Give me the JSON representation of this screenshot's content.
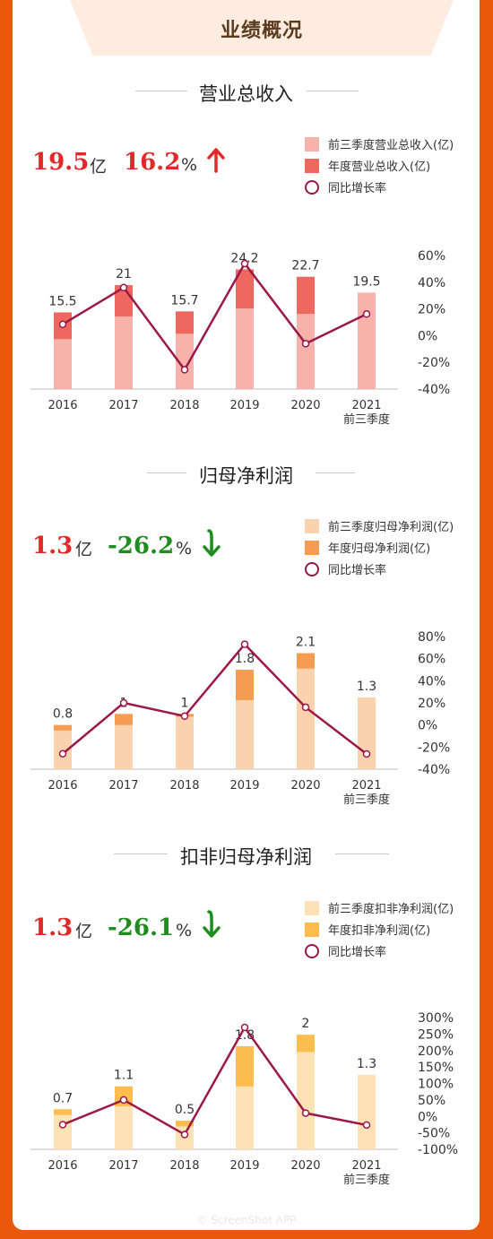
{
  "header": {
    "title": "业绩概况"
  },
  "sections": [
    {
      "title": "营业总收入",
      "kpi_value": "19.5",
      "kpi_unit": "亿",
      "kpi_growth": "16.2",
      "kpi_growth_unit": "%",
      "kpi_direction": "up",
      "colors": {
        "q3": "#f7b3ab",
        "annual": "#ee6860",
        "line": "#9b1847",
        "kpi_value": "#e02a2a",
        "kpi_growth": "#e02a2a"
      },
      "legend": [
        "前三季度营业总收入(亿)",
        "年度营业总收入(亿)",
        "同比增长率"
      ]
    },
    {
      "title": "归母净利润",
      "kpi_value": "1.3",
      "kpi_unit": "亿",
      "kpi_growth": "-26.2",
      "kpi_growth_unit": "%",
      "kpi_direction": "down",
      "colors": {
        "q3": "#fbd2ae",
        "annual": "#f49c52",
        "line": "#9b1847",
        "kpi_value": "#e02a2a",
        "kpi_growth": "#1e8c1e"
      },
      "legend": [
        "前三季度归母净利润(亿)",
        "年度归母净利润(亿)",
        "同比增长率"
      ]
    },
    {
      "title": "扣非归母净利润",
      "kpi_value": "1.3",
      "kpi_unit": "亿",
      "kpi_growth": "-26.1",
      "kpi_growth_unit": "%",
      "kpi_direction": "down",
      "colors": {
        "q3": "#fde2b5",
        "annual": "#fbbd4e",
        "line": "#9b1847",
        "kpi_value": "#e02a2a",
        "kpi_growth": "#1e8c1e"
      },
      "legend": [
        "前三季度扣非净利润(亿)",
        "年度扣非净利润(亿)",
        "同比增长率"
      ]
    }
  ],
  "chart_data": [
    {
      "type": "bar",
      "categories": [
        "2016",
        "2017",
        "2018",
        "2019",
        "2020",
        "2021\n前三季度"
      ],
      "series": [
        {
          "name": "前三季度营业总收入(亿)",
          "values": [
            10.1,
            14.7,
            11.2,
            16.3,
            15.2,
            19.5
          ]
        },
        {
          "name": "年度营业总收入(亿)",
          "values": [
            15.5,
            21,
            15.7,
            24.2,
            22.7,
            null
          ]
        },
        {
          "name": "同比增长率",
          "values": [
            8.5,
            36,
            -25.5,
            54,
            -6,
            16.2
          ],
          "axis": "right",
          "type": "line"
        }
      ],
      "data_labels": [
        "15.5",
        "21",
        "15.7",
        "24.2",
        "22.7",
        "19.5"
      ],
      "ylim": [
        0,
        27
      ],
      "y2lim": [
        -40,
        60
      ],
      "y2ticks": [
        "60%",
        "40%",
        "20%",
        "0%",
        "-20%",
        "-40%"
      ]
    },
    {
      "type": "bar",
      "categories": [
        "2016",
        "2017",
        "2018",
        "2019",
        "2020",
        "2021\n前三季度"
      ],
      "series": [
        {
          "name": "前三季度归母净利润(亿)",
          "values": [
            0.7,
            0.8,
            0.95,
            1.25,
            1.82,
            1.3
          ]
        },
        {
          "name": "年度归母净利润(亿)",
          "values": [
            0.8,
            1.0,
            1.0,
            1.8,
            2.1,
            null
          ]
        },
        {
          "name": "同比增长率",
          "values": [
            -26,
            20,
            8,
            73,
            16,
            -26.2
          ],
          "axis": "right",
          "type": "line"
        }
      ],
      "data_labels": [
        "0.8",
        "1",
        "1",
        "1.8",
        "2.1",
        "1.3"
      ],
      "ylim": [
        0,
        2.4
      ],
      "y2lim": [
        -40,
        80
      ],
      "y2ticks": [
        "80%",
        "60%",
        "40%",
        "20%",
        "0%",
        "-20%",
        "-40%"
      ]
    },
    {
      "type": "bar",
      "categories": [
        "2016",
        "2017",
        "2018",
        "2019",
        "2020",
        "2021\n前三季度"
      ],
      "series": [
        {
          "name": "前三季度扣非净利润(亿)",
          "values": [
            0.6,
            0.75,
            0.4,
            1.1,
            1.7,
            1.3
          ]
        },
        {
          "name": "年度扣非净利润(亿)",
          "values": [
            0.7,
            1.1,
            0.5,
            1.8,
            2.0,
            null
          ]
        },
        {
          "name": "同比增长率",
          "values": [
            -25,
            50,
            -55,
            270,
            10,
            -26.1
          ],
          "axis": "right",
          "type": "line"
        }
      ],
      "data_labels": [
        "0.7",
        "1.1",
        "0.5",
        "1.8",
        "2",
        "1.3"
      ],
      "ylim": [
        0,
        2.3
      ],
      "y2lim": [
        -100,
        300
      ],
      "y2ticks": [
        "300%",
        "250%",
        "200%",
        "150%",
        "100%",
        "50%",
        "0%",
        "-50%",
        "-100%"
      ]
    }
  ],
  "footer": {
    "watermark": "© ScreenShot APP"
  }
}
